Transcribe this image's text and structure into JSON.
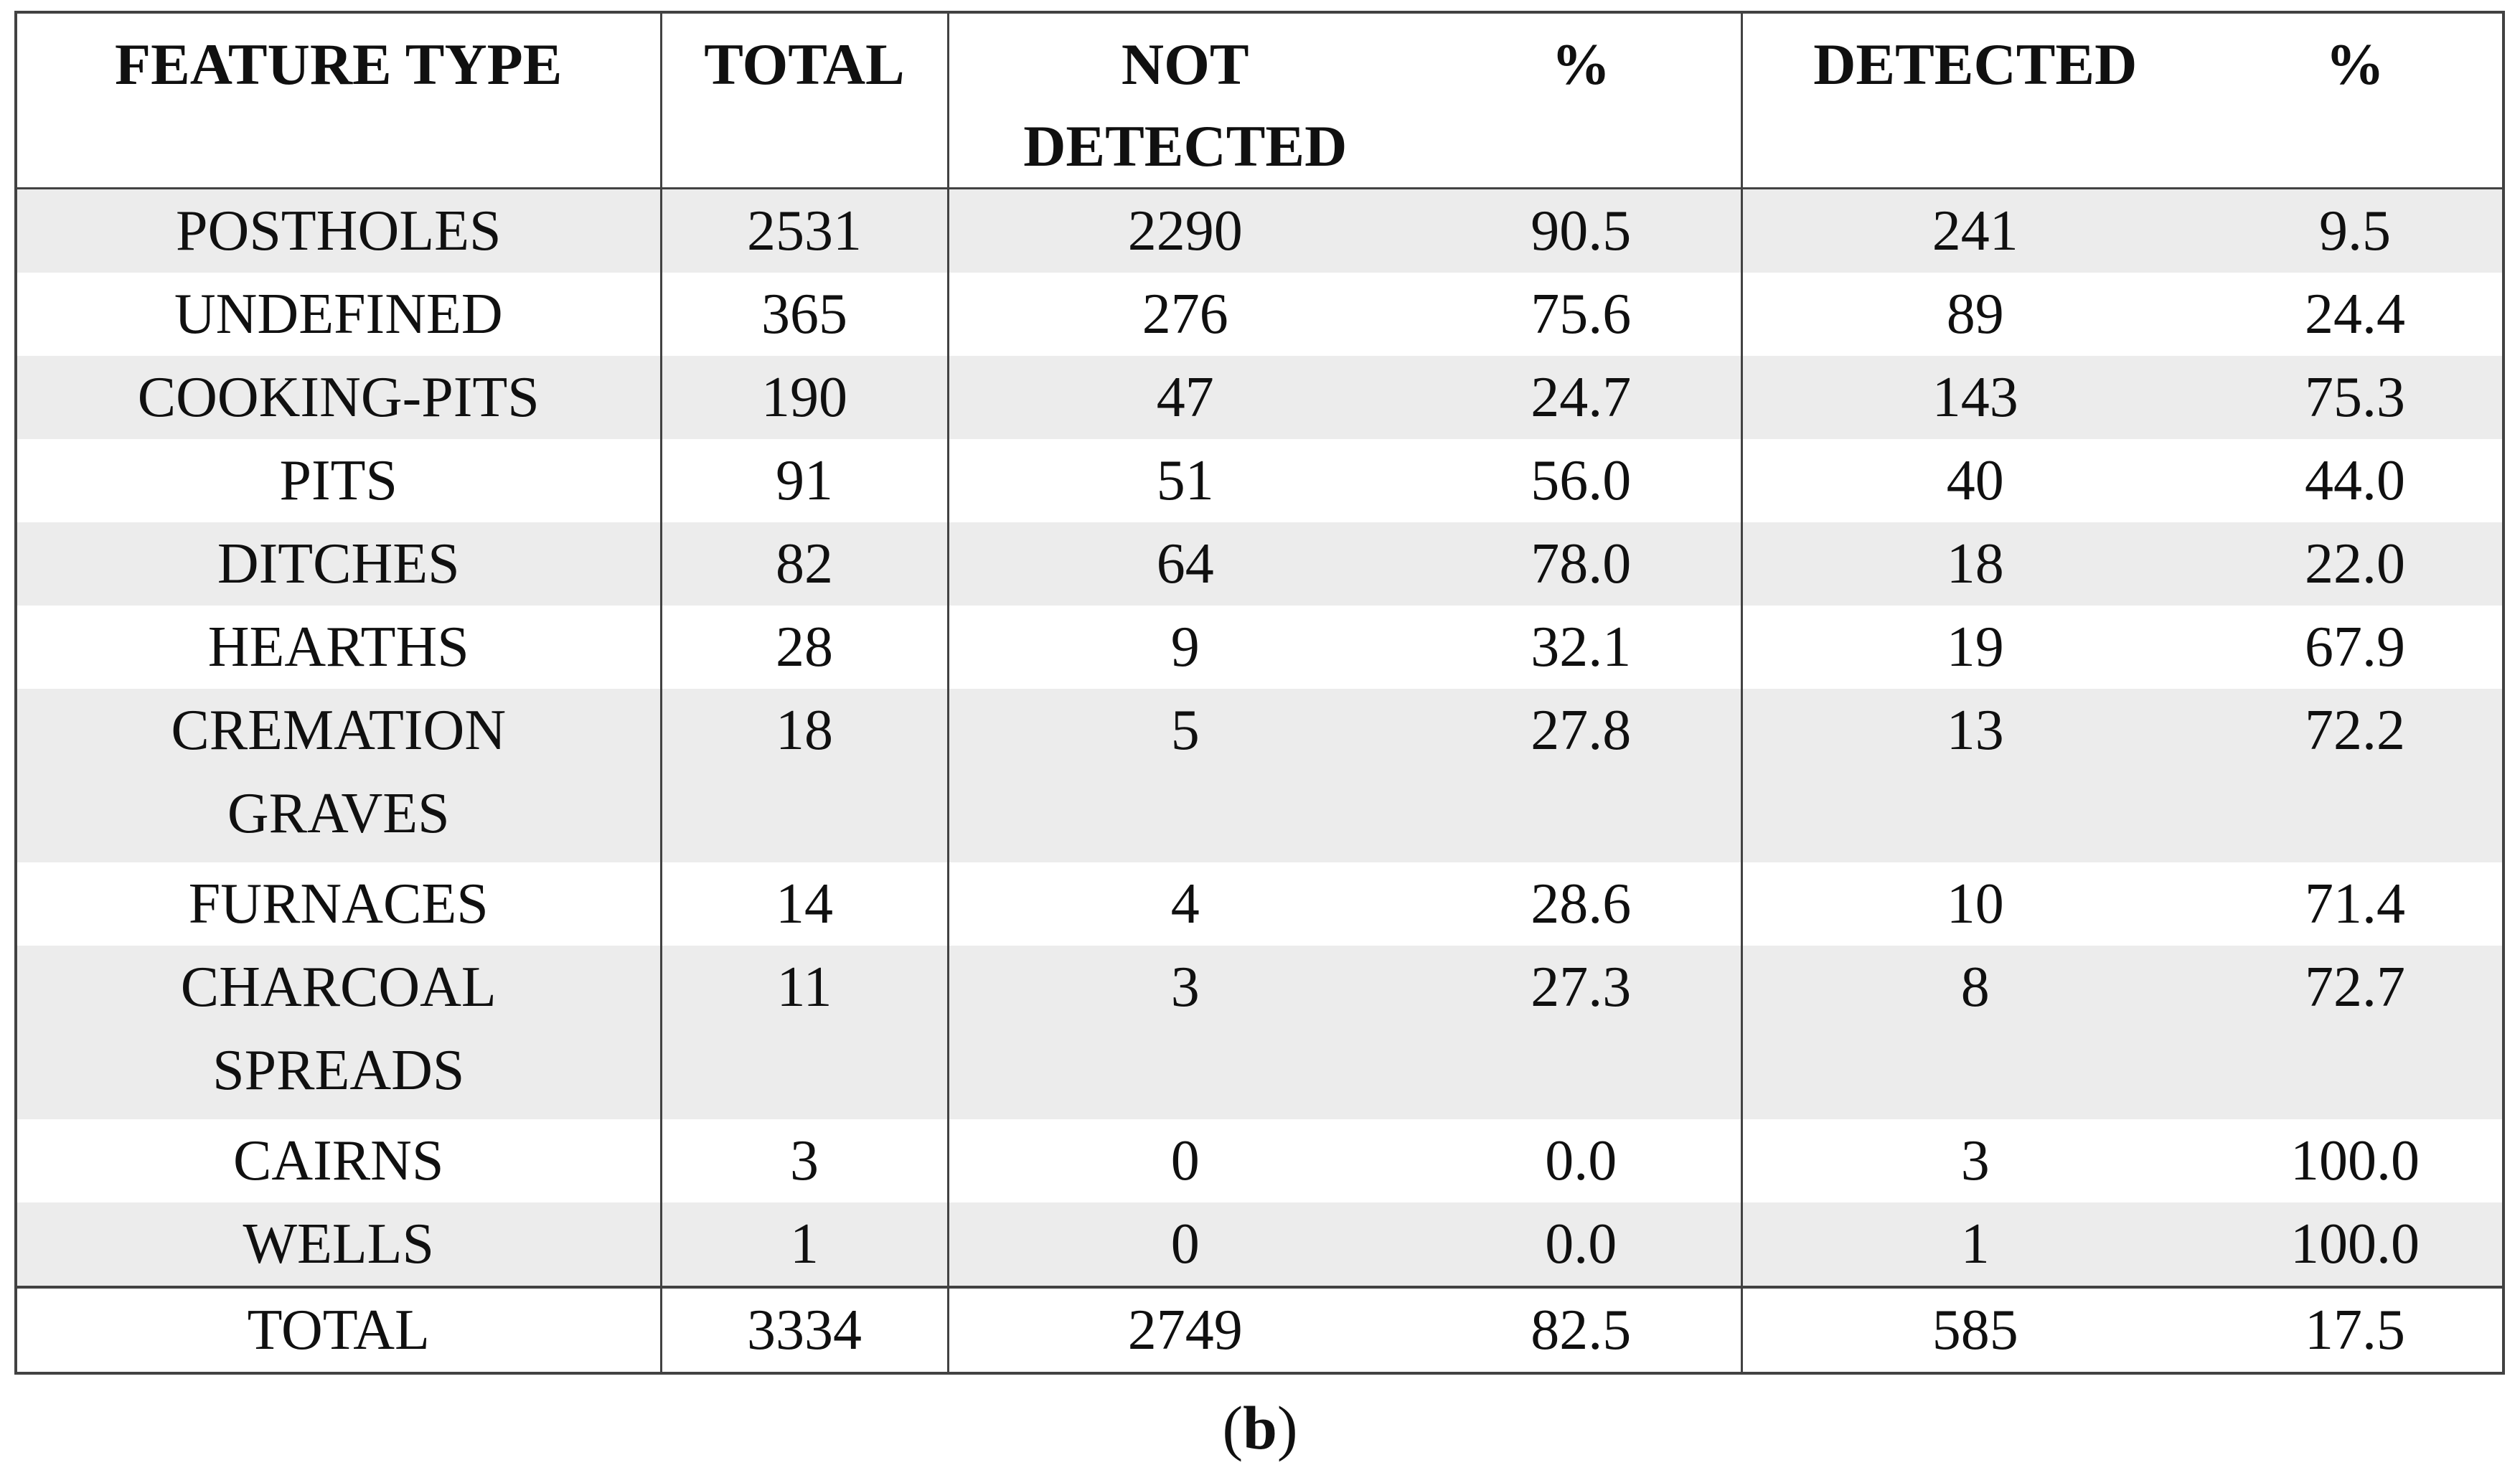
{
  "figure": {
    "caption_open": "(",
    "caption_letter": "b",
    "caption_close": ")"
  },
  "table": {
    "headers": [
      "FEATURE TYPE",
      "TOTAL",
      "NOT\nDETECTED",
      "%",
      "DETECTED",
      "%"
    ],
    "rows": [
      {
        "feature": "POSTHOLES",
        "total": "2531",
        "not_detected": "2290",
        "not_detected_pct": "90.5",
        "detected": "241",
        "detected_pct": "9.5"
      },
      {
        "feature": "UNDEFINED",
        "total": "365",
        "not_detected": "276",
        "not_detected_pct": "75.6",
        "detected": "89",
        "detected_pct": "24.4"
      },
      {
        "feature": "COOKING-PITS",
        "total": "190",
        "not_detected": "47",
        "not_detected_pct": "24.7",
        "detected": "143",
        "detected_pct": "75.3"
      },
      {
        "feature": "PITS",
        "total": "91",
        "not_detected": "51",
        "not_detected_pct": "56.0",
        "detected": "40",
        "detected_pct": "44.0"
      },
      {
        "feature": "DITCHES",
        "total": "82",
        "not_detected": "64",
        "not_detected_pct": "78.0",
        "detected": "18",
        "detected_pct": "22.0"
      },
      {
        "feature": "HEARTHS",
        "total": "28",
        "not_detected": "9",
        "not_detected_pct": "32.1",
        "detected": "19",
        "detected_pct": "67.9"
      },
      {
        "feature": "CREMATION\nGRAVES",
        "total": "18",
        "not_detected": "5",
        "not_detected_pct": "27.8",
        "detected": "13",
        "detected_pct": "72.2"
      },
      {
        "feature": "FURNACES",
        "total": "14",
        "not_detected": "4",
        "not_detected_pct": "28.6",
        "detected": "10",
        "detected_pct": "71.4"
      },
      {
        "feature": "CHARCOAL\nSPREADS",
        "total": "11",
        "not_detected": "3",
        "not_detected_pct": "27.3",
        "detected": "8",
        "detected_pct": "72.7"
      },
      {
        "feature": "CAIRNS",
        "total": "3",
        "not_detected": "0",
        "not_detected_pct": "0.0",
        "detected": "3",
        "detected_pct": "100.0"
      },
      {
        "feature": "WELLS",
        "total": "1",
        "not_detected": "0",
        "not_detected_pct": "0.0",
        "detected": "1",
        "detected_pct": "100.0"
      }
    ],
    "total_row": {
      "feature": "TOTAL",
      "total": "3334",
      "not_detected": "2749",
      "not_detected_pct": "82.5",
      "detected": "585",
      "detected_pct": "17.5"
    }
  },
  "chart_data": {
    "type": "table",
    "columns": [
      "FEATURE TYPE",
      "TOTAL",
      "NOT DETECTED",
      "%",
      "DETECTED",
      "%"
    ],
    "rows": [
      [
        "POSTHOLES",
        2531,
        2290,
        90.5,
        241,
        9.5
      ],
      [
        "UNDEFINED",
        365,
        276,
        75.6,
        89,
        24.4
      ],
      [
        "COOKING-PITS",
        190,
        47,
        24.7,
        143,
        75.3
      ],
      [
        "PITS",
        91,
        51,
        56.0,
        40,
        44.0
      ],
      [
        "DITCHES",
        82,
        64,
        78.0,
        18,
        22.0
      ],
      [
        "HEARTHS",
        28,
        9,
        32.1,
        19,
        67.9
      ],
      [
        "CREMATION GRAVES",
        18,
        5,
        27.8,
        13,
        72.2
      ],
      [
        "FURNACES",
        14,
        4,
        28.6,
        10,
        71.4
      ],
      [
        "CHARCOAL SPREADS",
        11,
        3,
        27.3,
        8,
        72.7
      ],
      [
        "CAIRNS",
        3,
        0,
        0.0,
        3,
        100.0
      ],
      [
        "WELLS",
        1,
        0,
        0.0,
        1,
        100.0
      ],
      [
        "TOTAL",
        3334,
        2749,
        82.5,
        585,
        17.5
      ]
    ]
  },
  "colors": {
    "stripe": "#ececec",
    "border": "#424242"
  }
}
